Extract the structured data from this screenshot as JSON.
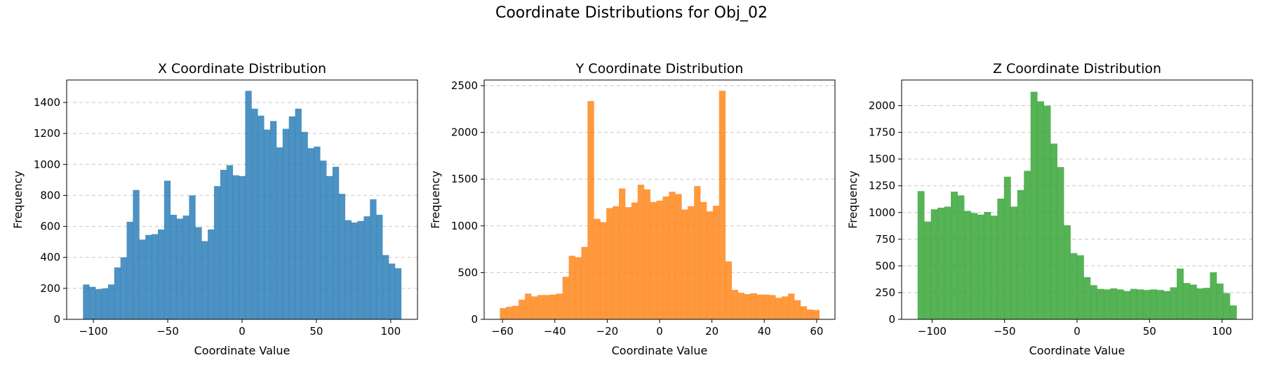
{
  "figure": {
    "suptitle": "Coordinate Distributions for Obj_02"
  },
  "chart_data": [
    {
      "type": "bar",
      "title": "X Coordinate Distribution",
      "xlabel": "Coordinate Value",
      "ylabel": "Frequency",
      "color": "#1f77b4",
      "bin_range": [
        -107,
        107
      ],
      "xlim": [
        -118,
        118
      ],
      "ylim": [
        0,
        1545
      ],
      "xticks": [
        -100,
        -50,
        0,
        50,
        100
      ],
      "yticks": [
        0,
        200,
        400,
        600,
        800,
        1000,
        1200,
        1400
      ],
      "grid": "y-dashed",
      "values": [
        225,
        210,
        195,
        200,
        225,
        335,
        400,
        630,
        835,
        515,
        545,
        550,
        580,
        895,
        675,
        650,
        670,
        800,
        595,
        505,
        580,
        860,
        965,
        995,
        930,
        925,
        1475,
        1360,
        1315,
        1225,
        1280,
        1110,
        1230,
        1310,
        1360,
        1210,
        1105,
        1115,
        1025,
        925,
        985,
        810,
        640,
        625,
        635,
        665,
        775,
        675,
        415,
        360,
        330
      ]
    },
    {
      "type": "bar",
      "title": "Y Coordinate Distribution",
      "xlabel": "Coordinate Value",
      "ylabel": "Frequency",
      "color": "#ff7f0e",
      "bin_range": [
        -61,
        61
      ],
      "xlim": [
        -67,
        67
      ],
      "ylim": [
        0,
        2560
      ],
      "xticks": [
        -60,
        -40,
        -20,
        0,
        20,
        40,
        60
      ],
      "yticks": [
        0,
        500,
        1000,
        1500,
        2000,
        2500
      ],
      "grid": "y-dashed",
      "values": [
        120,
        135,
        145,
        210,
        275,
        245,
        260,
        260,
        265,
        275,
        455,
        680,
        665,
        775,
        2335,
        1075,
        1040,
        1190,
        1210,
        1400,
        1200,
        1250,
        1440,
        1390,
        1255,
        1270,
        1315,
        1365,
        1340,
        1175,
        1210,
        1425,
        1255,
        1155,
        1215,
        2445,
        620,
        315,
        285,
        270,
        280,
        265,
        265,
        260,
        230,
        245,
        275,
        205,
        140,
        105,
        100
      ]
    },
    {
      "type": "bar",
      "title": "Z Coordinate Distribution",
      "xlabel": "Coordinate Value",
      "ylabel": "Frequency",
      "color": "#2ca02c",
      "bin_range": [
        -110,
        110
      ],
      "xlim": [
        -121,
        121
      ],
      "ylim": [
        0,
        2240
      ],
      "xticks": [
        -100,
        -50,
        0,
        50,
        100
      ],
      "yticks": [
        0,
        250,
        500,
        750,
        1000,
        1250,
        1500,
        1750,
        2000
      ],
      "grid": "y-dashed",
      "values": [
        1200,
        915,
        1030,
        1045,
        1055,
        1195,
        1160,
        1015,
        995,
        980,
        1005,
        970,
        1130,
        1335,
        1055,
        1210,
        1390,
        2130,
        2040,
        2000,
        1645,
        1425,
        880,
        620,
        600,
        395,
        320,
        285,
        280,
        290,
        280,
        265,
        285,
        280,
        275,
        280,
        275,
        265,
        300,
        475,
        340,
        325,
        290,
        295,
        440,
        335,
        245,
        130
      ]
    }
  ]
}
